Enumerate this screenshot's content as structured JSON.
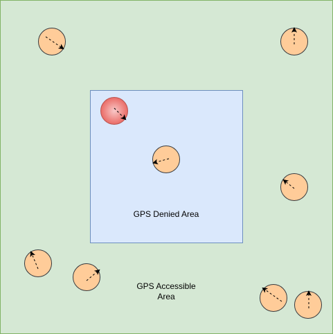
{
  "colors": {
    "accessible_fill": "#d5e8d4",
    "accessible_border": "#82b366",
    "denied_fill": "#dae8fc",
    "denied_border": "#6c8ebf",
    "agent_fill": "#ffcc99",
    "agent_border": "#36393d",
    "target_fill_light": "#f8c8c8",
    "target_fill_dark": "#ea6b66",
    "target_border": "#b85450",
    "arrow": "#000000"
  },
  "labels": {
    "gps_denied_area": "GPS Denied Area",
    "gps_accessible_area": "GPS Accessible\nArea"
  },
  "agents": [
    {
      "id": "agent-1",
      "type": "normal",
      "heading": "down-right"
    },
    {
      "id": "agent-2",
      "type": "normal",
      "heading": "up"
    },
    {
      "id": "agent-3",
      "type": "highlighted",
      "heading": "down-right"
    },
    {
      "id": "agent-4",
      "type": "normal",
      "heading": "left"
    },
    {
      "id": "agent-5",
      "type": "normal",
      "heading": "up-left"
    },
    {
      "id": "agent-6",
      "type": "normal",
      "heading": "up-left"
    },
    {
      "id": "agent-7",
      "type": "normal",
      "heading": "up-right"
    },
    {
      "id": "agent-8",
      "type": "normal",
      "heading": "up-left"
    },
    {
      "id": "agent-9",
      "type": "normal",
      "heading": "up"
    }
  ]
}
